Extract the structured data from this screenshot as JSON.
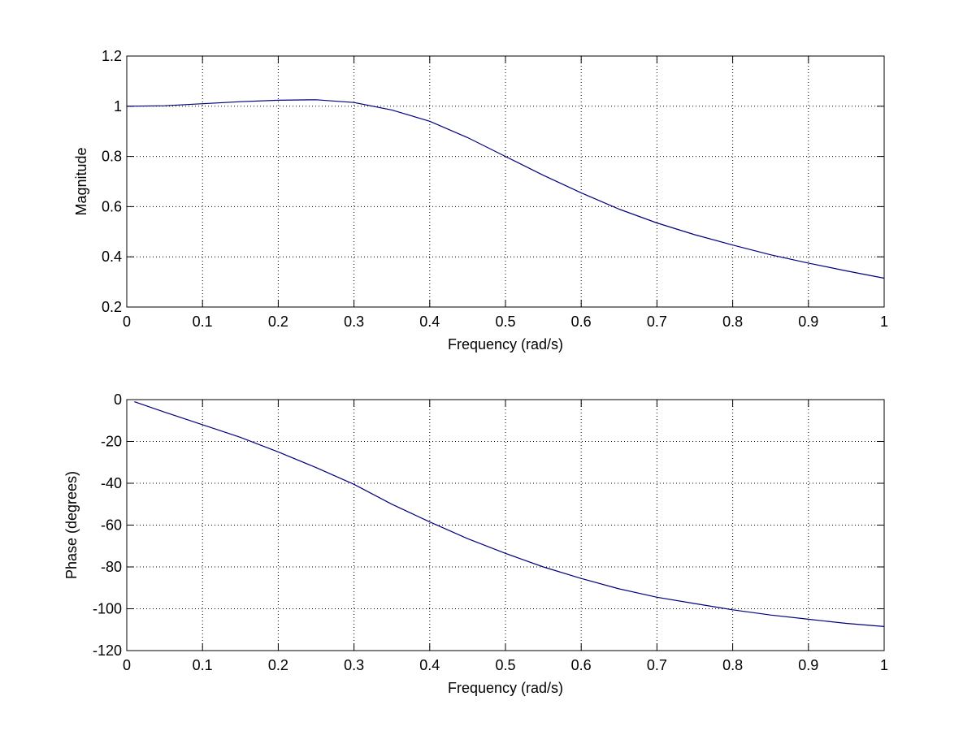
{
  "chart_data": [
    {
      "type": "line",
      "title": "",
      "xlabel": "Frequency (rad/s)",
      "ylabel": "Magnitude",
      "xlim": [
        0,
        1
      ],
      "ylim": [
        0.2,
        1.2
      ],
      "xticks": [
        "0",
        "0.1",
        "0.2",
        "0.3",
        "0.4",
        "0.5",
        "0.6",
        "0.7",
        "0.8",
        "0.9",
        "1"
      ],
      "yticks": [
        "0.2",
        "0.4",
        "0.6",
        "0.8",
        "1",
        "1.2"
      ],
      "grid": true,
      "line_color": "#00007f",
      "x": [
        0,
        0.05,
        0.1,
        0.15,
        0.2,
        0.25,
        0.3,
        0.35,
        0.4,
        0.45,
        0.5,
        0.55,
        0.6,
        0.65,
        0.7,
        0.75,
        0.8,
        0.85,
        0.9,
        0.95,
        1.0
      ],
      "values": [
        1.0,
        1.002,
        1.01,
        1.018,
        1.024,
        1.026,
        1.015,
        0.985,
        0.94,
        0.875,
        0.8,
        0.725,
        0.655,
        0.59,
        0.535,
        0.488,
        0.447,
        0.408,
        0.375,
        0.344,
        0.315
      ]
    },
    {
      "type": "line",
      "title": "",
      "xlabel": "Frequency (rad/s)",
      "ylabel": "Phase (degrees)",
      "xlim": [
        0,
        1
      ],
      "ylim": [
        -120,
        0
      ],
      "xticks": [
        "0",
        "0.1",
        "0.2",
        "0.3",
        "0.4",
        "0.5",
        "0.6",
        "0.7",
        "0.8",
        "0.9",
        "1"
      ],
      "yticks": [
        "-120",
        "-100",
        "-80",
        "-60",
        "-40",
        "-20",
        "0"
      ],
      "grid": true,
      "line_color": "#00007f",
      "x": [
        0.01,
        0.05,
        0.1,
        0.15,
        0.2,
        0.25,
        0.3,
        0.35,
        0.4,
        0.45,
        0.5,
        0.55,
        0.6,
        0.65,
        0.7,
        0.75,
        0.8,
        0.85,
        0.9,
        0.95,
        1.0
      ],
      "values": [
        -1,
        -6,
        -12,
        -18,
        -25,
        -32.5,
        -40.5,
        -50,
        -58.5,
        -66.5,
        -73.5,
        -80,
        -85.5,
        -90.5,
        -94.5,
        -97.5,
        -100.5,
        -103,
        -105,
        -107,
        -108.5
      ]
    }
  ]
}
